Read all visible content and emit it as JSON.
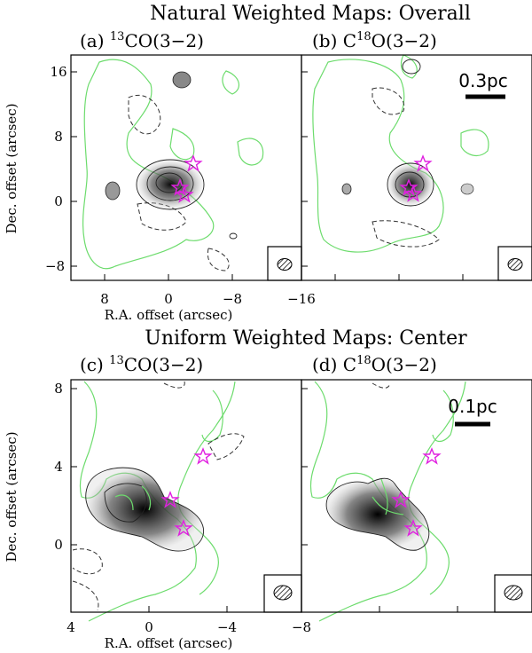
{
  "titles": {
    "top": "Natural Weighted Maps: Overall",
    "bottom": "Uniform Weighted Maps: Center"
  },
  "panels": {
    "a": {
      "prefix": "(a) ",
      "sup": "13",
      "suffix": "CO(3−2)"
    },
    "b": {
      "prefix": "(b) C",
      "sup": "18",
      "suffix": "O(3−2)"
    },
    "c": {
      "prefix": "(c) ",
      "sup": "13",
      "suffix": "CO(3−2)"
    },
    "d": {
      "prefix": "(d) C",
      "sup": "18",
      "suffix": "O(3−2)"
    }
  },
  "axes": {
    "ylabel": "Dec. offset (arcsec)",
    "xlabel": "R.A. offset (arcsec)",
    "top_yticks": [
      "16",
      "8",
      "0",
      "−8"
    ],
    "top_xticks": [
      "8",
      "0",
      "−8",
      "−16"
    ],
    "bottom_yticks": [
      "8",
      "4",
      "0"
    ],
    "bottom_xticks": [
      "4",
      "0",
      "−4",
      "−8"
    ]
  },
  "scalebars": {
    "top": "0.3pc",
    "bottom": "0.1pc"
  },
  "colors": {
    "green_contour": "#6ddc6d",
    "star": "#e020e0"
  }
}
